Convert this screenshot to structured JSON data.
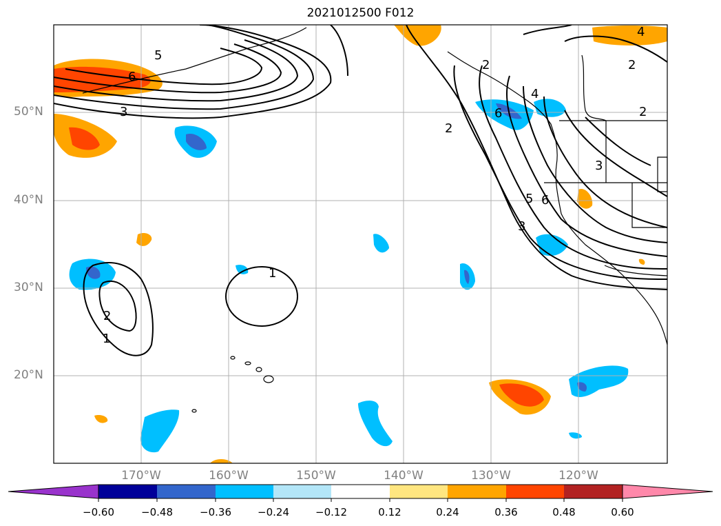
{
  "title": "2021012500 F012",
  "latitude_labels": [
    "50°N",
    "40°N",
    "30°N",
    "20°N"
  ],
  "longitude_labels": [
    "170°W",
    "160°W",
    "150°W",
    "140°W",
    "130°W",
    "120°W"
  ],
  "contour_labels": [
    "5",
    "6",
    "3",
    "4",
    "2",
    "2",
    "4",
    "6",
    "2",
    "3",
    "5",
    "6",
    "3",
    "1",
    "2",
    "1",
    "2"
  ],
  "colorbar": {
    "tick_labels": [
      "−0.60",
      "−0.48",
      "−0.36",
      "−0.24",
      "−0.12",
      "0.12",
      "0.24",
      "0.36",
      "0.48",
      "0.60"
    ],
    "colors": [
      "#9933cc",
      "#000099",
      "#3366cc",
      "#00bfff",
      "#b3e6f8",
      "#ffffff",
      "#ffe680",
      "#ffa500",
      "#ff4500",
      "#b22222",
      "#ff88aa"
    ]
  },
  "colors": {
    "contour": "#000000",
    "coastline": "#000000",
    "grid": "#b0b0b0",
    "axis_label": "#808080"
  }
}
